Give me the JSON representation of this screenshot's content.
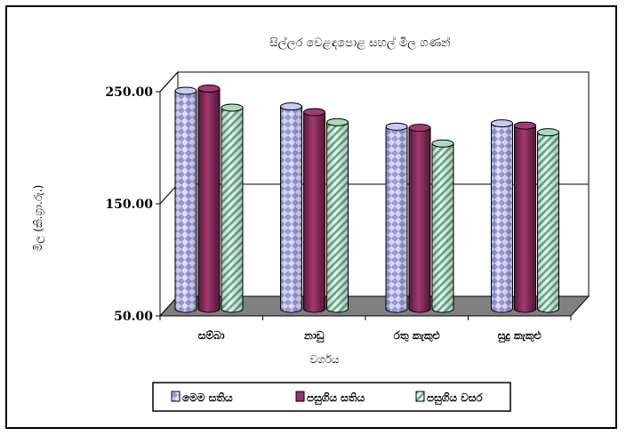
{
  "chart_data": {
    "type": "bar",
    "title": "සිල්ලර වෙළඳපොළ සහල් මිල ගණන්",
    "xlabel": "වර්ගය",
    "ylabel": "මිල (කි.ග්‍රා.රු.)",
    "categories": [
      "සම්බා",
      "නාඩු",
      "රතු කැකුළු",
      "සුදු කැකුළු"
    ],
    "series": [
      {
        "name": "මෙම සතිය",
        "values": [
          246,
          232,
          214,
          217
        ],
        "color": "#9a9ae6"
      },
      {
        "name": "පසුගිය සතිය",
        "values": [
          248,
          227,
          213,
          215
        ],
        "color": "#993366"
      },
      {
        "name": "පසුගිය වසර",
        "values": [
          231,
          218,
          199,
          209
        ],
        "color": "#5fb088"
      }
    ],
    "ylim": [
      50,
      250
    ],
    "yticks": [
      "50.00",
      "150.00",
      "250.00"
    ],
    "grid": true,
    "legend_position": "bottom"
  }
}
